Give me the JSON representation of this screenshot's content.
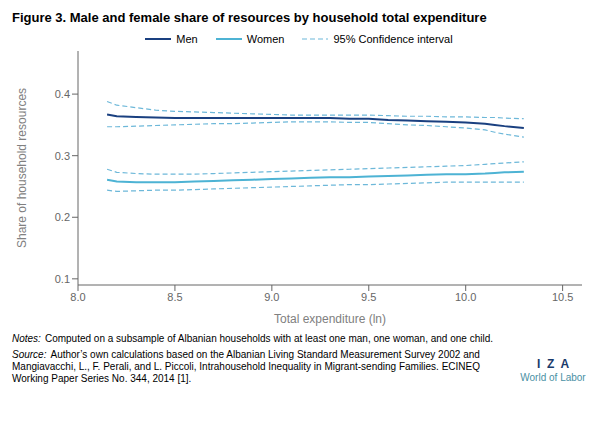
{
  "chart_data": {
    "type": "line",
    "title": "Figure 3. Male and female share of resources by household total expenditure",
    "x_label": "Total expenditure (ln)",
    "y_label": "Share of household resources",
    "x": [
      8.15,
      8.2,
      8.3,
      8.4,
      8.5,
      8.6,
      8.7,
      8.8,
      8.9,
      9.0,
      9.1,
      9.2,
      9.3,
      9.4,
      9.5,
      9.6,
      9.7,
      9.8,
      9.9,
      10.0,
      10.1,
      10.15,
      10.2,
      10.3
    ],
    "xlim": [
      8.0,
      10.6
    ],
    "xticks": [
      {
        "value": 8.0,
        "label": "8.0"
      },
      {
        "value": 8.5,
        "label": "8.5"
      },
      {
        "value": 9.0,
        "label": "9.0"
      },
      {
        "value": 9.5,
        "label": "9.5"
      },
      {
        "value": 10.0,
        "label": "10.0"
      },
      {
        "value": 10.5,
        "label": "10.5"
      }
    ],
    "ylim": [
      0.09,
      0.47
    ],
    "yticks": [
      0.1,
      0.2,
      0.3,
      0.4
    ],
    "grid": false,
    "legend": "top",
    "series": [
      {
        "name": "Men",
        "color": "#1a4080",
        "line_style": "solid",
        "values": [
          0.367,
          0.364,
          0.363,
          0.362,
          0.361,
          0.361,
          0.361,
          0.361,
          0.361,
          0.361,
          0.361,
          0.361,
          0.361,
          0.36,
          0.36,
          0.358,
          0.357,
          0.356,
          0.355,
          0.354,
          0.352,
          0.35,
          0.348,
          0.345
        ],
        "ci_upper": [
          0.388,
          0.382,
          0.378,
          0.374,
          0.372,
          0.371,
          0.37,
          0.369,
          0.368,
          0.367,
          0.366,
          0.366,
          0.366,
          0.366,
          0.366,
          0.365,
          0.364,
          0.364,
          0.363,
          0.363,
          0.362,
          0.362,
          0.361,
          0.36
        ],
        "ci_lower": [
          0.347,
          0.347,
          0.348,
          0.349,
          0.35,
          0.351,
          0.352,
          0.352,
          0.353,
          0.354,
          0.355,
          0.355,
          0.355,
          0.354,
          0.354,
          0.352,
          0.35,
          0.349,
          0.347,
          0.345,
          0.342,
          0.338,
          0.335,
          0.33
        ]
      },
      {
        "name": "Women",
        "color": "#4db3d4",
        "line_style": "solid",
        "values": [
          0.261,
          0.258,
          0.257,
          0.257,
          0.257,
          0.258,
          0.259,
          0.26,
          0.261,
          0.262,
          0.263,
          0.264,
          0.265,
          0.265,
          0.266,
          0.267,
          0.268,
          0.269,
          0.27,
          0.27,
          0.271,
          0.272,
          0.273,
          0.274
        ],
        "ci_upper": [
          0.278,
          0.273,
          0.271,
          0.27,
          0.27,
          0.27,
          0.271,
          0.272,
          0.273,
          0.274,
          0.275,
          0.276,
          0.277,
          0.278,
          0.279,
          0.28,
          0.281,
          0.282,
          0.283,
          0.284,
          0.286,
          0.287,
          0.288,
          0.29
        ],
        "ci_lower": [
          0.244,
          0.242,
          0.243,
          0.244,
          0.244,
          0.245,
          0.246,
          0.247,
          0.248,
          0.249,
          0.25,
          0.251,
          0.252,
          0.253,
          0.253,
          0.254,
          0.255,
          0.256,
          0.257,
          0.257,
          0.257,
          0.257,
          0.257,
          0.257
        ]
      }
    ],
    "confidence_interval": {
      "name": "95% Confidence interval",
      "color": "#6db8d9",
      "line_style": "dashed"
    },
    "notes_label": "Notes:",
    "notes": "Computed on a subsample of Albanian households with at least one man, one woman, and one child.",
    "source_label": "Source:",
    "source": "Author’s own calculations based on the Albanian Living Standard Measurement Survey 2002 and Mangiavacchi, L., F. Perali, and L. Piccoli, Intrahousehold Inequality in Migrant-sending Families. ECINEQ Working Paper Series No. 344, 2014 [1].",
    "annotations": [
      {
        "text": "I  Z  A",
        "color": "#1a3a6b"
      },
      {
        "text": "World of Labor",
        "color": "#4a90a4"
      }
    ]
  }
}
